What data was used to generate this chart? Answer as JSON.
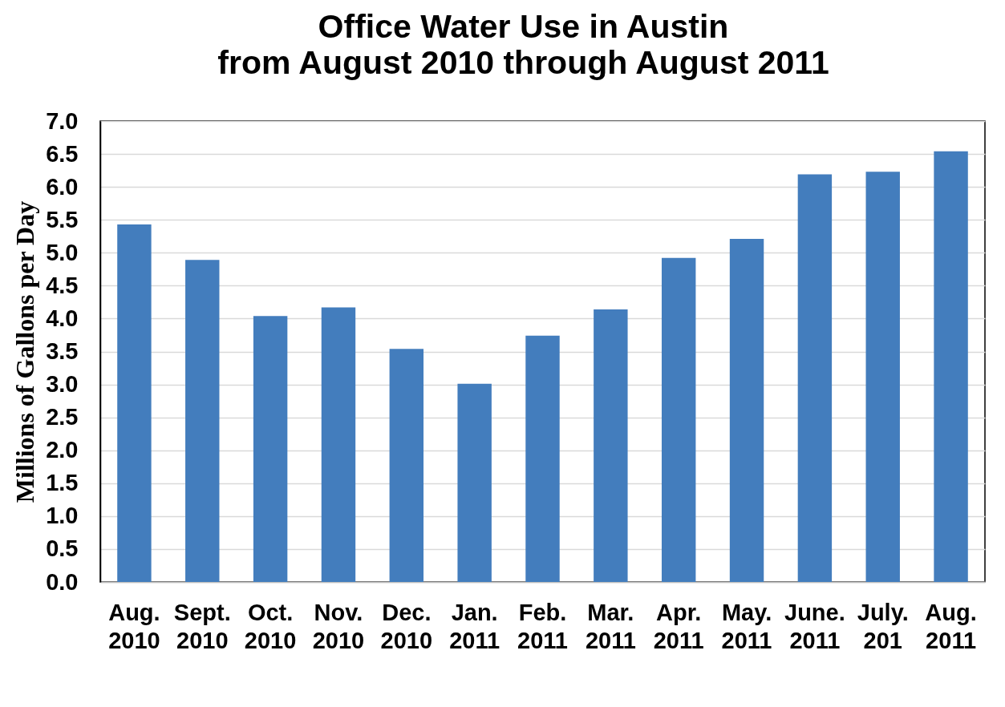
{
  "chart_data": {
    "type": "bar",
    "title": "Office Water Use in Austin",
    "subtitle": "from August 2010 through August 2011",
    "ylabel": "Millions of Gallons per Day",
    "categories": [
      "Aug. 2010",
      "Sept. 2010",
      "Oct. 2010",
      "Nov. 2010",
      "Dec. 2010",
      "Jan. 2011",
      "Feb. 2011",
      "Mar. 2011",
      "Apr. 2011",
      "May. 2011",
      "June. 2011",
      "July. 201",
      "Aug. 2011"
    ],
    "values": [
      5.43,
      4.89,
      4.04,
      4.17,
      3.54,
      3.01,
      3.74,
      4.14,
      4.92,
      5.21,
      6.19,
      6.23,
      6.54
    ],
    "color": "#437dbd",
    "ylim": [
      0,
      7
    ],
    "yticks": [
      {
        "value": 0,
        "label": "0.0"
      },
      0.5,
      {
        "value": 1,
        "label": "1.0"
      },
      1.5,
      {
        "value": 2,
        "label": "2.0"
      },
      2.5,
      {
        "value": 3,
        "label": "3.0"
      },
      3.5,
      {
        "value": 4,
        "label": "4.0"
      },
      4.5,
      {
        "value": 5,
        "label": "5.0"
      },
      5.5,
      {
        "value": 6,
        "label": "6.0"
      },
      6.5,
      {
        "value": 7,
        "label": "7.0"
      }
    ],
    "grid": "y"
  }
}
